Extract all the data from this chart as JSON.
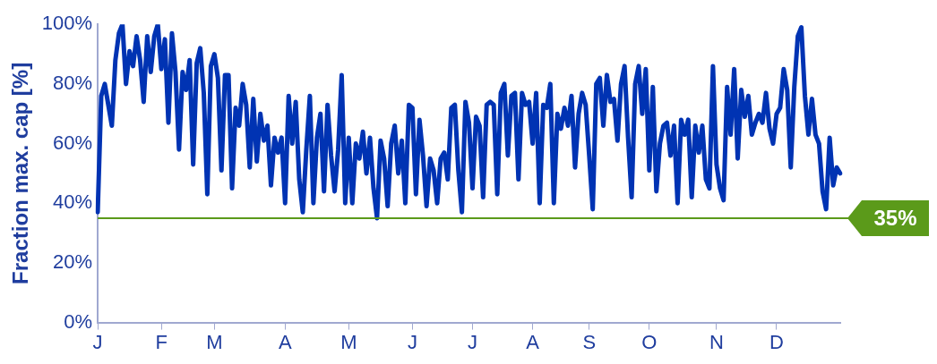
{
  "chart_data": {
    "type": "line",
    "ylabel": "Fraction max. cap [%]",
    "categories": [
      "J",
      null,
      null,
      null,
      null,
      null,
      null,
      null,
      null,
      null,
      null,
      null,
      null,
      null,
      null,
      null,
      null,
      null,
      "F",
      null,
      null,
      null,
      null,
      null,
      null,
      null,
      null,
      null,
      null,
      null,
      null,
      null,
      null,
      "M",
      null,
      null,
      null,
      null,
      null,
      null,
      null,
      null,
      null,
      null,
      null,
      null,
      null,
      null,
      null,
      null,
      null,
      null,
      null,
      "A",
      null,
      null,
      null,
      null,
      null,
      null,
      null,
      null,
      null,
      null,
      null,
      null,
      null,
      null,
      null,
      null,
      null,
      "M",
      null,
      null,
      null,
      null,
      null,
      null,
      null,
      null,
      null,
      null,
      null,
      null,
      null,
      null,
      null,
      null,
      null,
      "J",
      null,
      null,
      null,
      null,
      null,
      null,
      null,
      null,
      null,
      null,
      null,
      null,
      null,
      null,
      null,
      null,
      "J",
      null,
      null,
      null,
      null,
      null,
      null,
      null,
      null,
      null,
      null,
      null,
      null,
      null,
      null,
      null,
      null,
      "A",
      null,
      null,
      null,
      null,
      null,
      null,
      null,
      null,
      null,
      null,
      null,
      null,
      null,
      null,
      null,
      "S",
      null,
      null,
      null,
      null,
      null,
      null,
      null,
      null,
      null,
      null,
      null,
      null,
      null,
      null,
      null,
      null,
      "O",
      null,
      null,
      null,
      null,
      null,
      null,
      null,
      null,
      null,
      null,
      null,
      null,
      null,
      null,
      null,
      null,
      null,
      null,
      "N",
      null,
      null,
      null,
      null,
      null,
      null,
      null,
      null,
      null,
      null,
      null,
      null,
      null,
      null,
      null,
      null,
      "D",
      null,
      null,
      null,
      null,
      null,
      null,
      null,
      null,
      null,
      null,
      null,
      null,
      null,
      null,
      null,
      null,
      null,
      null
    ],
    "ylim": [
      0,
      100
    ],
    "yticks": [
      {
        "value": 0,
        "label": "0%"
      },
      {
        "value": 20,
        "label": "20%"
      },
      {
        "value": 40,
        "label": "40%"
      },
      {
        "value": 60,
        "label": "60%"
      },
      {
        "value": 80,
        "label": "80%"
      },
      {
        "value": 100,
        "label": "100%"
      }
    ],
    "grid": false,
    "legend": false,
    "marker": "none",
    "line_style": "solid",
    "ref_lines": [
      {
        "axis": "y",
        "value": 35,
        "label": "35%",
        "color": "#5b9a1a"
      }
    ],
    "series": [
      {
        "color": "#0033b3",
        "values": [
          37,
          76,
          80,
          73,
          66,
          88,
          97,
          100,
          80,
          91,
          86,
          96,
          88,
          74,
          96,
          84,
          96,
          100,
          85,
          95,
          67,
          97,
          84,
          58,
          84,
          78,
          88,
          53,
          87,
          92,
          77,
          43,
          86,
          90,
          82,
          51,
          83,
          83,
          45,
          72,
          66,
          80,
          73,
          52,
          75,
          54,
          70,
          61,
          66,
          46,
          62,
          57,
          62,
          40,
          76,
          60,
          74,
          48,
          37,
          58,
          76,
          40,
          62,
          70,
          44,
          73,
          56,
          44,
          58,
          83,
          40,
          62,
          40,
          60,
          55,
          64,
          50,
          62,
          45,
          35,
          61,
          55,
          39,
          60,
          66,
          50,
          61,
          40,
          73,
          72,
          43,
          68,
          56,
          39,
          55,
          51,
          40,
          55,
          57,
          48,
          72,
          73,
          51,
          37,
          74,
          67,
          45,
          69,
          66,
          42,
          73,
          74,
          73,
          43,
          77,
          80,
          56,
          76,
          77,
          48,
          77,
          73,
          74,
          60,
          77,
          40,
          73,
          72,
          80,
          40,
          70,
          65,
          72,
          66,
          76,
          52,
          70,
          77,
          73,
          56,
          38,
          80,
          82,
          66,
          83,
          74,
          75,
          61,
          80,
          86,
          62,
          42,
          80,
          86,
          70,
          85,
          51,
          79,
          44,
          60,
          66,
          67,
          56,
          66,
          40,
          68,
          63,
          68,
          42,
          66,
          57,
          66,
          48,
          45,
          86,
          53,
          45,
          41,
          79,
          63,
          85,
          55,
          78,
          69,
          76,
          63,
          67,
          70,
          67,
          77,
          65,
          60,
          70,
          72,
          85,
          78,
          52,
          79,
          96,
          99,
          76,
          63,
          75,
          63,
          60,
          44,
          38,
          62,
          46,
          52,
          50
        ]
      }
    ]
  }
}
